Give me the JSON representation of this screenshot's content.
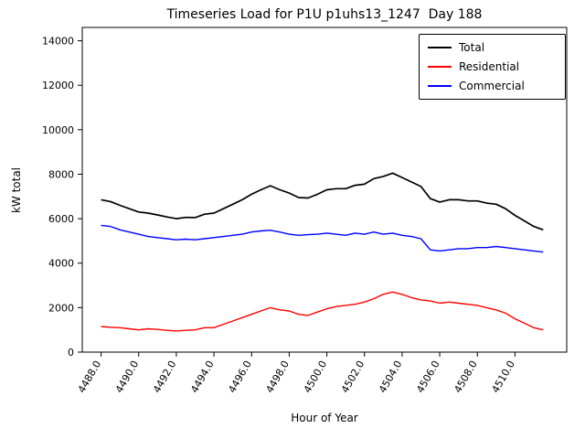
{
  "chart_data": {
    "type": "line",
    "title": "Timeseries Load for P1U p1uhs13_1247  Day 188",
    "xlabel": "Hour of Year",
    "ylabel": "kW total",
    "grid": false,
    "legend_position": "upper right",
    "xlim": [
      4487.0,
      4512.75
    ],
    "ylim": [
      0,
      14600
    ],
    "x_ticks": [
      4488.0,
      4490.0,
      4492.0,
      4494.0,
      4496.0,
      4498.0,
      4500.0,
      4502.0,
      4504.0,
      4506.0,
      4508.0,
      4510.0
    ],
    "x_tick_labels": [
      "4488.0",
      "4490.0",
      "4492.0",
      "4494.0",
      "4496.0",
      "4498.0",
      "4500.0",
      "4502.0",
      "4504.0",
      "4506.0",
      "4508.0",
      "4510.0"
    ],
    "y_ticks": [
      0,
      2000,
      4000,
      6000,
      8000,
      10000,
      12000,
      14000
    ],
    "y_tick_labels": [
      "0",
      "2000",
      "4000",
      "6000",
      "8000",
      "10000",
      "12000",
      "14000"
    ],
    "x": [
      4488.0,
      4488.5,
      4489.0,
      4489.5,
      4490.0,
      4490.5,
      4491.0,
      4491.5,
      4492.0,
      4492.5,
      4493.0,
      4493.5,
      4494.0,
      4494.5,
      4495.0,
      4495.5,
      4496.0,
      4496.5,
      4497.0,
      4497.5,
      4498.0,
      4498.5,
      4499.0,
      4499.5,
      4500.0,
      4500.5,
      4501.0,
      4501.5,
      4502.0,
      4502.5,
      4503.0,
      4503.5,
      4504.0,
      4504.5,
      4505.0,
      4505.5,
      4506.0,
      4506.5,
      4507.0,
      4507.5,
      4508.0,
      4508.5,
      4509.0,
      4509.5,
      4510.0,
      4510.5,
      4511.0,
      4511.5
    ],
    "series": [
      {
        "name": "Total",
        "color": "#000000",
        "line_width": 1.7,
        "values": [
          6850,
          6770,
          6600,
          6450,
          6300,
          6250,
          6170,
          6080,
          6000,
          6060,
          6050,
          6200,
          6250,
          6450,
          6650,
          6850,
          7100,
          7300,
          7480,
          7300,
          7150,
          6950,
          6930,
          7100,
          7300,
          7350,
          7350,
          7500,
          7550,
          7800,
          7900,
          8050,
          7850,
          7650,
          7450,
          6900,
          6750,
          6850,
          6850,
          6800,
          6800,
          6700,
          6650,
          6450,
          6150,
          5900,
          5650,
          5500
        ]
      },
      {
        "name": "Residential",
        "color": "#ff0000",
        "line_width": 1.4,
        "values": [
          1150,
          1120,
          1100,
          1050,
          1000,
          1050,
          1020,
          980,
          950,
          980,
          1000,
          1100,
          1100,
          1250,
          1400,
          1550,
          1700,
          1850,
          2000,
          1900,
          1850,
          1700,
          1650,
          1800,
          1950,
          2050,
          2100,
          2150,
          2250,
          2400,
          2600,
          2700,
          2600,
          2450,
          2350,
          2300,
          2200,
          2250,
          2200,
          2150,
          2100,
          2000,
          1900,
          1750,
          1500,
          1300,
          1100,
          1000
        ]
      },
      {
        "name": "Commercial",
        "color": "#0000ff",
        "line_width": 1.4,
        "values": [
          5700,
          5650,
          5500,
          5400,
          5300,
          5200,
          5150,
          5100,
          5050,
          5080,
          5050,
          5100,
          5150,
          5200,
          5250,
          5300,
          5400,
          5450,
          5480,
          5400,
          5300,
          5250,
          5280,
          5300,
          5350,
          5300,
          5250,
          5350,
          5300,
          5400,
          5300,
          5350,
          5250,
          5200,
          5100,
          4600,
          4550,
          4600,
          4650,
          4650,
          4700,
          4700,
          4750,
          4700,
          4650,
          4600,
          4550,
          4500
        ]
      }
    ]
  }
}
